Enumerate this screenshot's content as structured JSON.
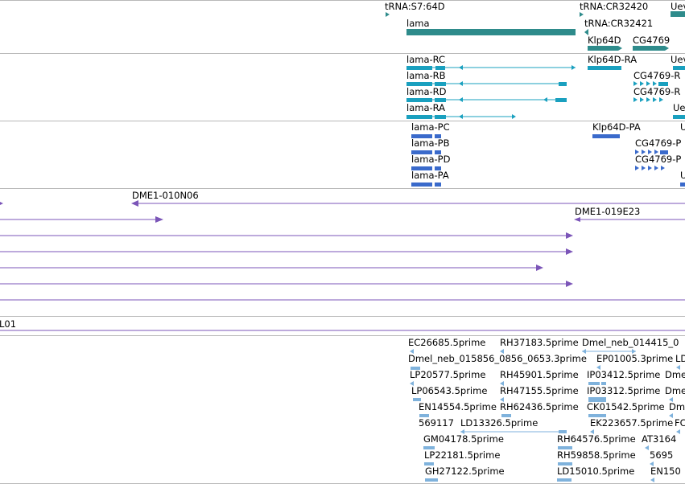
{
  "colors": {
    "gene": "#2e8b8b",
    "transcript": "#1aa0bf",
    "protein": "#3a6acb",
    "bac": "#7b55b8",
    "est": "#7fb2dc",
    "separator": "#b8b8b8"
  },
  "gene_track": {
    "labels": [
      "tRNA:S7:64D",
      "tRNA:CR32420",
      "Uev",
      "lama",
      "tRNA:CR32421",
      "Klp64D",
      "CG4769"
    ]
  },
  "transcript_track": {
    "labels": [
      "lama-RC",
      "Klp64D-RA",
      "Uev",
      "lama-RB",
      "CG4769-R",
      "lama-RD",
      "CG4769-R",
      "lama-RA",
      "Uev"
    ]
  },
  "protein_track": {
    "labels": [
      "lama-PC",
      "Klp64D-PA",
      "U",
      "lama-PB",
      "CG4769-P",
      "lama-PD",
      "CG4769-P",
      "lama-PA",
      "U"
    ]
  },
  "bac_track": {
    "labels": [
      "DME1-010N06",
      "DME1-019E23",
      "L01"
    ]
  },
  "est_track": {
    "labels": [
      "EC26685.5prime",
      "RH37183.5prime",
      "Dmel_neb_014415_0",
      "Dmel_neb_015856_0856_0653.3prime",
      "EP01005.3prime",
      "LD",
      "LP20577.5prime",
      "RH45901.5prime",
      "IP03412.5prime",
      "Dme",
      "LP06543.5prime",
      "RH47155.5prime",
      "IP03312.5prime",
      "Dme",
      "EN14554.5prime",
      "RH62436.5prime",
      "CK01542.5prime",
      "Dm",
      "569117",
      "LD13326.5prime",
      "EK223657.5prime",
      "FC",
      "GM04178.5prime",
      "RH64576.5prime",
      "AT3164",
      "LP22181.5prime",
      "RH59858.5prime",
      "5695",
      "GH27122.5prime",
      "LD15010.5prime",
      "EN150"
    ]
  }
}
